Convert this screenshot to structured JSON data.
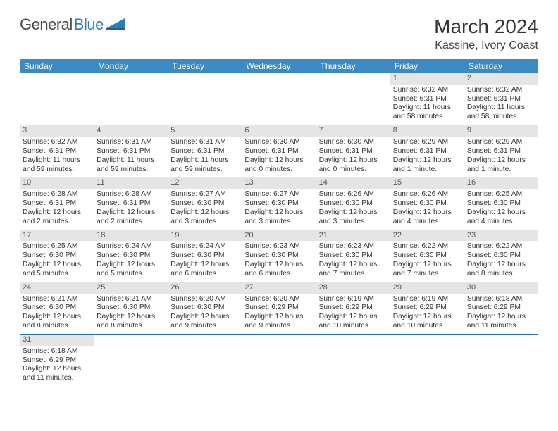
{
  "logo": {
    "general": "General",
    "blue": "Blue"
  },
  "title": "March 2024",
  "location": "Kassine, Ivory Coast",
  "colors": {
    "header_bg": "#3b8ac4",
    "header_text": "#ffffff",
    "daynum_bg": "#e5e5e5",
    "row_border": "#2a6fa8",
    "text": "#333333",
    "logo_blue": "#2a7fba"
  },
  "weekdays": [
    "Sunday",
    "Monday",
    "Tuesday",
    "Wednesday",
    "Thursday",
    "Friday",
    "Saturday"
  ],
  "weeks": [
    [
      null,
      null,
      null,
      null,
      null,
      {
        "n": "1",
        "sr": "Sunrise: 6:32 AM",
        "ss": "Sunset: 6:31 PM",
        "d1": "Daylight: 11 hours",
        "d2": "and 58 minutes."
      },
      {
        "n": "2",
        "sr": "Sunrise: 6:32 AM",
        "ss": "Sunset: 6:31 PM",
        "d1": "Daylight: 11 hours",
        "d2": "and 58 minutes."
      }
    ],
    [
      {
        "n": "3",
        "sr": "Sunrise: 6:32 AM",
        "ss": "Sunset: 6:31 PM",
        "d1": "Daylight: 11 hours",
        "d2": "and 59 minutes."
      },
      {
        "n": "4",
        "sr": "Sunrise: 6:31 AM",
        "ss": "Sunset: 6:31 PM",
        "d1": "Daylight: 11 hours",
        "d2": "and 59 minutes."
      },
      {
        "n": "5",
        "sr": "Sunrise: 6:31 AM",
        "ss": "Sunset: 6:31 PM",
        "d1": "Daylight: 11 hours",
        "d2": "and 59 minutes."
      },
      {
        "n": "6",
        "sr": "Sunrise: 6:30 AM",
        "ss": "Sunset: 6:31 PM",
        "d1": "Daylight: 12 hours",
        "d2": "and 0 minutes."
      },
      {
        "n": "7",
        "sr": "Sunrise: 6:30 AM",
        "ss": "Sunset: 6:31 PM",
        "d1": "Daylight: 12 hours",
        "d2": "and 0 minutes."
      },
      {
        "n": "8",
        "sr": "Sunrise: 6:29 AM",
        "ss": "Sunset: 6:31 PM",
        "d1": "Daylight: 12 hours",
        "d2": "and 1 minute."
      },
      {
        "n": "9",
        "sr": "Sunrise: 6:29 AM",
        "ss": "Sunset: 6:31 PM",
        "d1": "Daylight: 12 hours",
        "d2": "and 1 minute."
      }
    ],
    [
      {
        "n": "10",
        "sr": "Sunrise: 6:28 AM",
        "ss": "Sunset: 6:31 PM",
        "d1": "Daylight: 12 hours",
        "d2": "and 2 minutes."
      },
      {
        "n": "11",
        "sr": "Sunrise: 6:28 AM",
        "ss": "Sunset: 6:31 PM",
        "d1": "Daylight: 12 hours",
        "d2": "and 2 minutes."
      },
      {
        "n": "12",
        "sr": "Sunrise: 6:27 AM",
        "ss": "Sunset: 6:30 PM",
        "d1": "Daylight: 12 hours",
        "d2": "and 3 minutes."
      },
      {
        "n": "13",
        "sr": "Sunrise: 6:27 AM",
        "ss": "Sunset: 6:30 PM",
        "d1": "Daylight: 12 hours",
        "d2": "and 3 minutes."
      },
      {
        "n": "14",
        "sr": "Sunrise: 6:26 AM",
        "ss": "Sunset: 6:30 PM",
        "d1": "Daylight: 12 hours",
        "d2": "and 3 minutes."
      },
      {
        "n": "15",
        "sr": "Sunrise: 6:26 AM",
        "ss": "Sunset: 6:30 PM",
        "d1": "Daylight: 12 hours",
        "d2": "and 4 minutes."
      },
      {
        "n": "16",
        "sr": "Sunrise: 6:25 AM",
        "ss": "Sunset: 6:30 PM",
        "d1": "Daylight: 12 hours",
        "d2": "and 4 minutes."
      }
    ],
    [
      {
        "n": "17",
        "sr": "Sunrise: 6:25 AM",
        "ss": "Sunset: 6:30 PM",
        "d1": "Daylight: 12 hours",
        "d2": "and 5 minutes."
      },
      {
        "n": "18",
        "sr": "Sunrise: 6:24 AM",
        "ss": "Sunset: 6:30 PM",
        "d1": "Daylight: 12 hours",
        "d2": "and 5 minutes."
      },
      {
        "n": "19",
        "sr": "Sunrise: 6:24 AM",
        "ss": "Sunset: 6:30 PM",
        "d1": "Daylight: 12 hours",
        "d2": "and 6 minutes."
      },
      {
        "n": "20",
        "sr": "Sunrise: 6:23 AM",
        "ss": "Sunset: 6:30 PM",
        "d1": "Daylight: 12 hours",
        "d2": "and 6 minutes."
      },
      {
        "n": "21",
        "sr": "Sunrise: 6:23 AM",
        "ss": "Sunset: 6:30 PM",
        "d1": "Daylight: 12 hours",
        "d2": "and 7 minutes."
      },
      {
        "n": "22",
        "sr": "Sunrise: 6:22 AM",
        "ss": "Sunset: 6:30 PM",
        "d1": "Daylight: 12 hours",
        "d2": "and 7 minutes."
      },
      {
        "n": "23",
        "sr": "Sunrise: 6:22 AM",
        "ss": "Sunset: 6:30 PM",
        "d1": "Daylight: 12 hours",
        "d2": "and 8 minutes."
      }
    ],
    [
      {
        "n": "24",
        "sr": "Sunrise: 6:21 AM",
        "ss": "Sunset: 6:30 PM",
        "d1": "Daylight: 12 hours",
        "d2": "and 8 minutes."
      },
      {
        "n": "25",
        "sr": "Sunrise: 6:21 AM",
        "ss": "Sunset: 6:30 PM",
        "d1": "Daylight: 12 hours",
        "d2": "and 8 minutes."
      },
      {
        "n": "26",
        "sr": "Sunrise: 6:20 AM",
        "ss": "Sunset: 6:30 PM",
        "d1": "Daylight: 12 hours",
        "d2": "and 9 minutes."
      },
      {
        "n": "27",
        "sr": "Sunrise: 6:20 AM",
        "ss": "Sunset: 6:29 PM",
        "d1": "Daylight: 12 hours",
        "d2": "and 9 minutes."
      },
      {
        "n": "28",
        "sr": "Sunrise: 6:19 AM",
        "ss": "Sunset: 6:29 PM",
        "d1": "Daylight: 12 hours",
        "d2": "and 10 minutes."
      },
      {
        "n": "29",
        "sr": "Sunrise: 6:19 AM",
        "ss": "Sunset: 6:29 PM",
        "d1": "Daylight: 12 hours",
        "d2": "and 10 minutes."
      },
      {
        "n": "30",
        "sr": "Sunrise: 6:18 AM",
        "ss": "Sunset: 6:29 PM",
        "d1": "Daylight: 12 hours",
        "d2": "and 11 minutes."
      }
    ],
    [
      {
        "n": "31",
        "sr": "Sunrise: 6:18 AM",
        "ss": "Sunset: 6:29 PM",
        "d1": "Daylight: 12 hours",
        "d2": "and 11 minutes."
      },
      null,
      null,
      null,
      null,
      null,
      null
    ]
  ]
}
